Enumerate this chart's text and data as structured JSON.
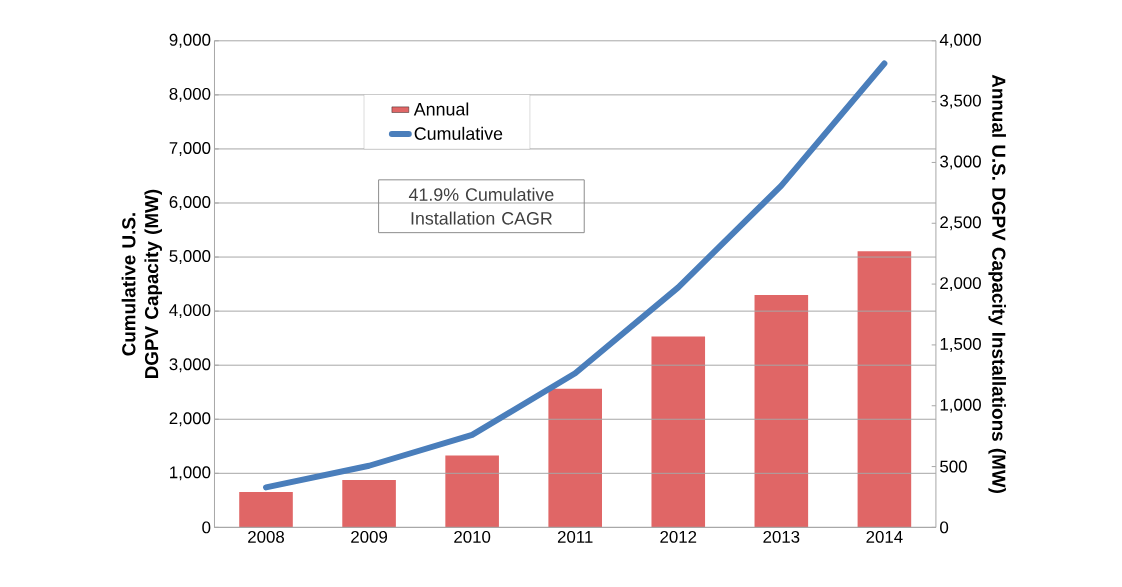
{
  "chart_data": {
    "type": "bar",
    "categories": [
      "2008",
      "2009",
      "2010",
      "2011",
      "2012",
      "2013",
      "2014"
    ],
    "ylabel": "Cumulative U.S. DGPV Capacity (MW)",
    "y2label": "Annual U.S. DGPV Capacity Installations (MW)",
    "ylim": [
      0,
      9000
    ],
    "yticks": [
      0,
      {
        "value": 1000,
        "label": "1,000"
      },
      {
        "value": 2000,
        "label": "2,000"
      },
      {
        "value": 3000,
        "label": "3,000"
      },
      {
        "value": 4000,
        "label": "4,000"
      },
      {
        "value": 5000,
        "label": "5,000"
      },
      {
        "value": 6000,
        "label": "6,000"
      },
      {
        "value": 7000,
        "label": "7,000"
      },
      {
        "value": 8000,
        "label": "8,000"
      },
      {
        "value": 9000,
        "label": "9,000"
      }
    ],
    "y2lim": [
      0,
      4000
    ],
    "y2ticks": [
      0,
      500,
      {
        "value": 1000,
        "label": "1,000"
      },
      {
        "value": 1500,
        "label": "1,500"
      },
      {
        "value": 2000,
        "label": "2,000"
      },
      {
        "value": 2500,
        "label": "2,500"
      },
      {
        "value": 3000,
        "label": "3,000"
      },
      {
        "value": 3500,
        "label": "3,500"
      },
      {
        "value": 4000,
        "label": "4,000"
      }
    ],
    "grid": "y",
    "legend": "top",
    "annotations": [
      "41.9% Cumulative Installation CAGR"
    ],
    "series": [
      {
        "name": "Annual",
        "axis": "y2",
        "color": "#e06666",
        "values": [
          290,
          390,
          590,
          1140,
          1570,
          1910,
          2270
        ]
      },
      {
        "name": "Cumulative",
        "type": "line",
        "color": "#4a7ebb",
        "values": [
          740,
          1140,
          1710,
          2850,
          4440,
          6320,
          8580
        ]
      }
    ]
  }
}
